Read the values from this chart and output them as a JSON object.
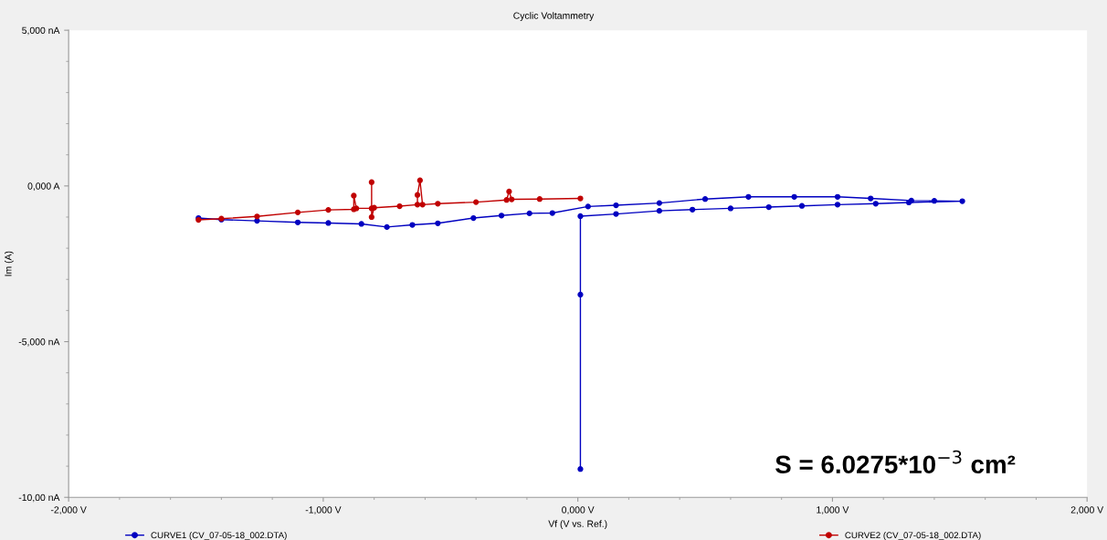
{
  "chart_data": {
    "type": "line",
    "title": "Cyclic Voltammetry",
    "xlabel": "Vf (V vs. Ref.)",
    "ylabel": "Im (A)",
    "xlim": [
      -2,
      2
    ],
    "ylim": [
      -10,
      5
    ],
    "xticks": [
      {
        "value": -2,
        "label": "-2,000 V"
      },
      {
        "value": -1,
        "label": "-1,000 V"
      },
      {
        "value": 0,
        "label": "0,000 V"
      },
      {
        "value": 1,
        "label": "1,000 V"
      },
      {
        "value": 2,
        "label": "2,000 V"
      }
    ],
    "yticks": [
      {
        "value": -10,
        "label": "-10,00 nA"
      },
      {
        "value": -5,
        "label": "-5,000 nA"
      },
      {
        "value": 0,
        "label": "0,000 A"
      },
      {
        "value": 5,
        "label": "5,000 nA"
      }
    ],
    "grid": false,
    "legend": "bottom",
    "marker": "circle",
    "line_style": "solid",
    "annotations": [
      "S = 6.0275*10$^{−3}$ cm²"
    ],
    "series": [
      {
        "name": "CURVE1 (CV_07-05-18_002.DTA)",
        "color": "#0000c0",
        "x": [
          0.01,
          0.01,
          0.01,
          0.15,
          0.32,
          0.45,
          0.6,
          0.75,
          0.88,
          1.02,
          1.17,
          1.3,
          1.51,
          1.4,
          1.31,
          1.15,
          1.02,
          0.85,
          0.67,
          0.5,
          0.32,
          0.15,
          0.04,
          -0.1,
          -0.19,
          -0.3,
          -0.41,
          -0.55,
          -0.65,
          -0.75,
          -0.85,
          -0.98,
          -1.1,
          -1.26,
          -1.4,
          -1.49
        ],
        "values": [
          -9.09,
          -3.49,
          -0.97,
          -0.9,
          -0.8,
          -0.76,
          -0.72,
          -0.68,
          -0.64,
          -0.6,
          -0.57,
          -0.53,
          -0.49,
          -0.48,
          -0.47,
          -0.4,
          -0.35,
          -0.35,
          -0.35,
          -0.42,
          -0.55,
          -0.62,
          -0.66,
          -0.87,
          -0.88,
          -0.95,
          -1.03,
          -1.2,
          -1.25,
          -1.32,
          -1.22,
          -1.19,
          -1.17,
          -1.12,
          -1.08,
          -1.03
        ]
      },
      {
        "name": "CURVE2 (CV_07-05-18_002.DTA)",
        "color": "#c00000",
        "x": [
          -1.49,
          -1.4,
          -1.26,
          -1.1,
          -0.98,
          -0.88,
          -0.88,
          -0.87,
          -0.81,
          -0.81,
          -0.81,
          -0.8,
          -0.7,
          -0.63,
          -0.63,
          -0.62,
          -0.61,
          -0.55,
          -0.4,
          -0.28,
          -0.27,
          -0.26,
          -0.15,
          0.01
        ],
        "values": [
          -1.09,
          -1.05,
          -0.98,
          -0.85,
          -0.77,
          -0.75,
          -0.31,
          -0.72,
          -0.72,
          0.12,
          -1.0,
          -0.7,
          -0.65,
          -0.6,
          -0.29,
          0.18,
          -0.6,
          -0.57,
          -0.52,
          -0.45,
          -0.18,
          -0.43,
          -0.42,
          -0.4
        ]
      }
    ]
  }
}
